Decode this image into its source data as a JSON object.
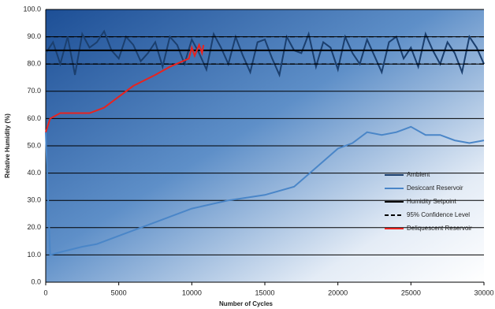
{
  "chart_data": {
    "type": "line",
    "x_label": "Number of Cycles",
    "y_label": "Relative Humidity (%)",
    "xlim": [
      0,
      30000
    ],
    "xticks": [
      0,
      5000,
      10000,
      15000,
      20000,
      25000,
      30000
    ],
    "ylim": [
      0,
      100
    ],
    "yticks": [
      {
        "value": 0,
        "label": "0.0"
      },
      {
        "value": 10,
        "label": "10.0"
      },
      {
        "value": 20,
        "label": "20.0"
      },
      {
        "value": 30,
        "label": "30.0"
      },
      {
        "value": 40,
        "label": "40.0"
      },
      {
        "value": 50,
        "label": "50.0"
      },
      {
        "value": 60,
        "label": "60.0"
      },
      {
        "value": 70,
        "label": "70.0"
      },
      {
        "value": 80,
        "label": "80.0"
      },
      {
        "value": 90,
        "label": "90.0"
      },
      {
        "value": 100,
        "label": "100.0"
      }
    ],
    "grid": true,
    "legend": "lower right",
    "series": [
      {
        "name": "Ambient",
        "color": "#1b3f6e",
        "dash": false,
        "x": [
          0,
          500,
          1000,
          1500,
          2000,
          2500,
          3000,
          3500,
          4000,
          4500,
          5000,
          5500,
          6000,
          6500,
          7000,
          7500,
          8000,
          8500,
          9000,
          9500,
          10000,
          10500,
          11000,
          11500,
          12000,
          12500,
          13000,
          13500,
          14000,
          14500,
          15000,
          15500,
          16000,
          16500,
          17000,
          17500,
          18000,
          18500,
          19000,
          19500,
          20000,
          20500,
          21000,
          21500,
          22000,
          22500,
          23000,
          23500,
          24000,
          24500,
          25000,
          25500,
          26000,
          26500,
          27000,
          27500,
          28000,
          28500,
          29000,
          29500,
          30000
        ],
        "values": [
          84,
          88,
          80,
          90,
          76,
          91,
          86,
          88,
          92,
          85,
          82,
          90,
          87,
          81,
          84,
          88,
          79,
          90,
          87,
          80,
          89,
          84,
          78,
          91,
          86,
          80,
          90,
          83,
          77,
          88,
          89,
          82,
          76,
          90,
          85,
          84,
          91,
          79,
          88,
          86,
          78,
          90,
          84,
          80,
          89,
          83,
          77,
          88,
          90,
          82,
          86,
          79,
          91,
          85,
          80,
          88,
          84,
          77,
          90,
          86,
          80
        ]
      },
      {
        "name": "Desiccant Reservoir",
        "color": "#4a86c8",
        "dash": false,
        "x": [
          0,
          300,
          1000,
          2500,
          3500,
          5000,
          7500,
          10000,
          12500,
          15000,
          17000,
          18500,
          20000,
          21000,
          22000,
          23000,
          24000,
          25000,
          26000,
          27000,
          28000,
          29000,
          30000
        ],
        "values": [
          55,
          10,
          11,
          13,
          14,
          17,
          22,
          27,
          30,
          32,
          35,
          42,
          49,
          51,
          55,
          54,
          55,
          57,
          54,
          54,
          52,
          51,
          52
        ]
      },
      {
        "name": "Humidity Setpoint",
        "color": "#000000",
        "dash": false,
        "x": [
          0,
          30000
        ],
        "values": [
          85,
          85
        ]
      },
      {
        "name": "95% Confidence Level",
        "color": "#000000",
        "dash": true,
        "x": [
          0,
          30000,
          null,
          0,
          30000
        ],
        "values": [
          90,
          90,
          null,
          80,
          80
        ]
      },
      {
        "name": "Deliquescent Reservoir",
        "color": "#e8231f",
        "dash": false,
        "x": [
          0,
          300,
          1000,
          2000,
          3000,
          4000,
          5000,
          6000,
          7500,
          8500,
          9800,
          10000,
          10200,
          10500,
          10700,
          10800
        ],
        "values": [
          55,
          60,
          62,
          62,
          62,
          64,
          68,
          72,
          76,
          79,
          82,
          86,
          83,
          87,
          84,
          87
        ]
      }
    ]
  }
}
